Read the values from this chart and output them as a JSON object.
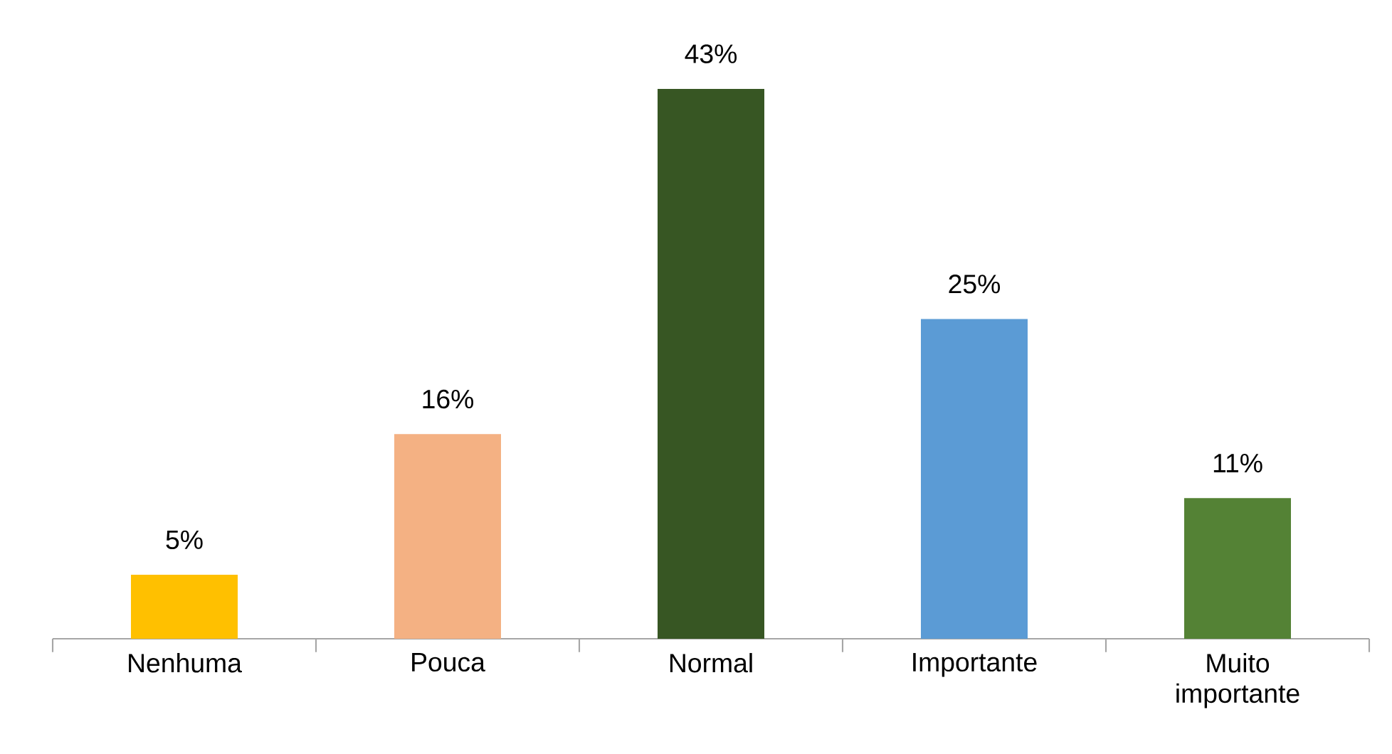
{
  "chart_data": {
    "type": "bar",
    "categories": [
      "Nenhuma",
      "Pouca",
      "Normal",
      "Importante",
      "Muito importante"
    ],
    "values": [
      5,
      16,
      43,
      25,
      11
    ],
    "colors": [
      "#ffc000",
      "#f4b183",
      "#375623",
      "#5b9bd5",
      "#548235"
    ],
    "value_labels": [
      "5%",
      "16%",
      "43%",
      "25%",
      "11%"
    ]
  }
}
